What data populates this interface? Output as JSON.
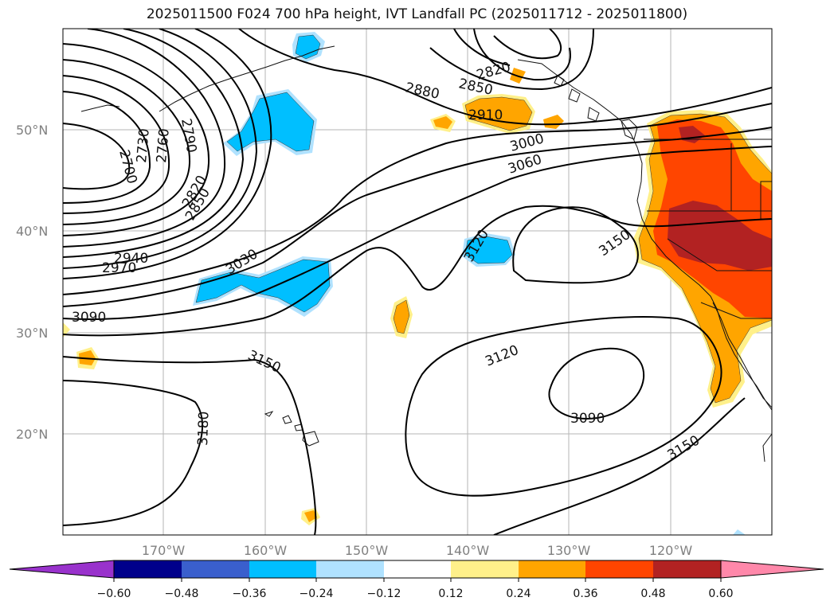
{
  "title": "2025011500 F024 700 hPa height, IVT Landfall PC (2025011712 - 2025011800)",
  "map": {
    "lon_labels": [
      "170°W",
      "160°W",
      "150°W",
      "140°W",
      "130°W",
      "120°W"
    ],
    "lat_labels": [
      "50°N",
      "40°N",
      "30°N",
      "20°N"
    ],
    "contour_labels": [
      "2700",
      "2730",
      "2760",
      "2790",
      "2820",
      "2850",
      "2940",
      "2970",
      "3030",
      "3090",
      "3150",
      "3180",
      "2880",
      "2850",
      "2820",
      "2910",
      "3000",
      "3060",
      "3120",
      "3150",
      "3120",
      "3090",
      "3150"
    ]
  },
  "colorbar": {
    "ticks": [
      "−0.60",
      "−0.48",
      "−0.36",
      "−0.24",
      "−0.12",
      "0.12",
      "0.24",
      "0.36",
      "0.48",
      "0.60"
    ],
    "colors": [
      "#9932cc",
      "#00008b",
      "#3a5fcd",
      "#00bfff",
      "#b0e2ff",
      "#ffffff",
      "#fff08a",
      "#ffa500",
      "#ff4500",
      "#b22222",
      "#ff88aa"
    ]
  }
}
